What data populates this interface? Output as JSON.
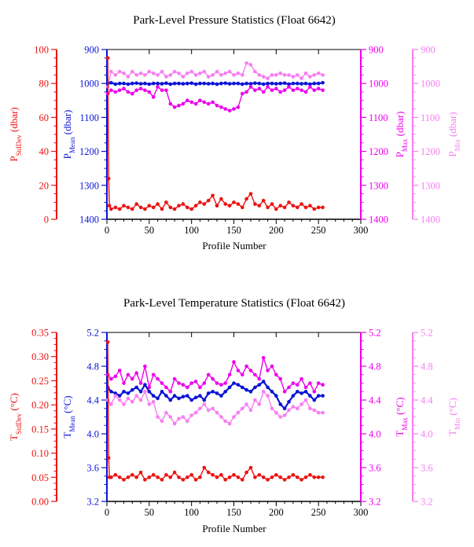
{
  "colors": {
    "stddev": "#ee1111",
    "mean": "#0a14d6",
    "max": "#ee00ee",
    "min": "#f77ef2",
    "frame": "#000000"
  },
  "chart_data": [
    {
      "type": "line",
      "title": "Park-Level Pressure Statistics (Float 6642)",
      "xlabel": "Profile Number",
      "xlim": [
        0,
        300
      ],
      "x_ticks": [
        "0",
        "50",
        "100",
        "150",
        "200",
        "250",
        "300"
      ],
      "axes": {
        "stddev": {
          "label_main": "P",
          "label_sub": "StdDev",
          "label_unit": " (dbar)",
          "lim": [
            0,
            100
          ],
          "ticks": [
            "0",
            "20",
            "40",
            "60",
            "80",
            "100"
          ]
        },
        "mean": {
          "label_main": "P",
          "label_sub": "Mean",
          "label_unit": " (dbar)",
          "lim": [
            1400,
            900
          ],
          "ticks": [
            "900",
            "1000",
            "1100",
            "1200",
            "1300",
            "1400"
          ]
        },
        "max": {
          "label_main": "P",
          "label_sub": "Max",
          "label_unit": " (dbar)",
          "lim": [
            1400,
            900
          ],
          "ticks": [
            "900",
            "1000",
            "1100",
            "1200",
            "1300",
            "1400"
          ]
        },
        "min": {
          "label_main": "P",
          "label_sub": "Min",
          "label_unit": " (dbar)",
          "lim": [
            1400,
            900
          ],
          "ticks": [
            "900",
            "1000",
            "1100",
            "1200",
            "1300",
            "1400"
          ]
        }
      },
      "series": [
        {
          "key": "min",
          "x": [
            1,
            5,
            10,
            15,
            20,
            25,
            30,
            35,
            40,
            45,
            50,
            55,
            60,
            65,
            70,
            75,
            80,
            85,
            90,
            95,
            100,
            105,
            110,
            115,
            120,
            125,
            130,
            135,
            140,
            145,
            150,
            155,
            160,
            165,
            170,
            175,
            180,
            185,
            190,
            195,
            200,
            205,
            210,
            215,
            220,
            225,
            230,
            235,
            240,
            245,
            250,
            255
          ],
          "values": [
            1010,
            965,
            975,
            965,
            970,
            980,
            965,
            975,
            970,
            975,
            965,
            970,
            975,
            965,
            980,
            975,
            965,
            970,
            980,
            970,
            965,
            975,
            970,
            965,
            980,
            975,
            965,
            975,
            970,
            965,
            975,
            970,
            975,
            940,
            945,
            965,
            975,
            980,
            985,
            975,
            975,
            970,
            975,
            975,
            980,
            975,
            985,
            970,
            980,
            975,
            970,
            975
          ]
        },
        {
          "key": "mean",
          "x": [
            1,
            5,
            10,
            15,
            20,
            25,
            30,
            35,
            40,
            45,
            50,
            55,
            60,
            65,
            70,
            75,
            80,
            85,
            90,
            95,
            100,
            105,
            110,
            115,
            120,
            125,
            130,
            135,
            140,
            145,
            150,
            155,
            160,
            165,
            170,
            175,
            180,
            185,
            190,
            195,
            200,
            205,
            210,
            215,
            220,
            225,
            230,
            235,
            240,
            245,
            250,
            255
          ],
          "values": [
            1000,
            998,
            1002,
            1000,
            1000,
            1002,
            1000,
            999,
            1001,
            1000,
            1002,
            1000,
            1000,
            1001,
            999,
            1002,
            1000,
            1000,
            1001,
            1000,
            999,
            1002,
            1000,
            1000,
            1001,
            1000,
            1002,
            1000,
            999,
            1001,
            1000,
            1000,
            1002,
            1000,
            1001,
            999,
            1000,
            1002,
            1000,
            1000,
            1001,
            1000,
            999,
            1002,
            1000,
            1000,
            1001,
            1000,
            1002,
            1000,
            1000,
            998
          ]
        },
        {
          "key": "max",
          "x": [
            1,
            5,
            10,
            15,
            20,
            25,
            30,
            35,
            40,
            45,
            50,
            55,
            60,
            65,
            70,
            75,
            80,
            85,
            90,
            95,
            100,
            105,
            110,
            115,
            120,
            125,
            130,
            135,
            140,
            145,
            150,
            155,
            160,
            165,
            170,
            175,
            180,
            185,
            190,
            195,
            200,
            205,
            210,
            215,
            220,
            225,
            230,
            235,
            240,
            245,
            250,
            255
          ],
          "values": [
            1030,
            1020,
            1025,
            1020,
            1015,
            1025,
            1030,
            1020,
            1015,
            1020,
            1025,
            1040,
            1010,
            1020,
            1020,
            1060,
            1070,
            1065,
            1060,
            1050,
            1055,
            1060,
            1050,
            1055,
            1060,
            1055,
            1065,
            1070,
            1075,
            1080,
            1075,
            1070,
            1030,
            1025,
            1010,
            1020,
            1015,
            1025,
            1010,
            1020,
            1015,
            1025,
            1020,
            1010,
            1020,
            1015,
            1020,
            1025,
            1010,
            1020,
            1015,
            1020
          ]
        },
        {
          "key": "stddev",
          "x": [
            1,
            2,
            3,
            5,
            10,
            15,
            20,
            25,
            30,
            35,
            40,
            45,
            50,
            55,
            60,
            65,
            70,
            75,
            80,
            85,
            90,
            95,
            100,
            105,
            110,
            115,
            120,
            125,
            130,
            135,
            140,
            145,
            150,
            155,
            160,
            165,
            170,
            175,
            180,
            185,
            190,
            195,
            200,
            205,
            210,
            215,
            220,
            225,
            230,
            235,
            240,
            245,
            250,
            255
          ],
          "values": [
            95,
            24,
            8,
            6,
            7,
            6,
            8,
            7,
            6,
            9,
            7,
            6,
            8,
            7,
            9,
            6,
            10,
            7,
            6,
            8,
            9,
            7,
            6,
            8,
            10,
            9,
            11,
            14,
            8,
            12,
            9,
            8,
            10,
            9,
            7,
            12,
            15,
            9,
            8,
            11,
            7,
            9,
            6,
            8,
            7,
            10,
            8,
            7,
            9,
            7,
            8,
            6,
            7,
            7
          ]
        }
      ]
    },
    {
      "type": "line",
      "title": "Park-Level Temperature Statistics (Float 6642)",
      "xlabel": "Profile Number",
      "xlim": [
        0,
        300
      ],
      "x_ticks": [
        "0",
        "50",
        "100",
        "150",
        "200",
        "250",
        "300"
      ],
      "axes": {
        "stddev": {
          "label_main": "T",
          "label_sub": "StdDev",
          "label_unit": " (°C)",
          "lim": [
            0,
            0.35
          ],
          "ticks": [
            "0.00",
            "0.05",
            "0.10",
            "0.15",
            "0.20",
            "0.25",
            "0.30",
            "0.35"
          ]
        },
        "mean": {
          "label_main": "T",
          "label_sub": "Mean",
          "label_unit": " (°C)",
          "lim": [
            3.2,
            5.2
          ],
          "ticks": [
            "3.2",
            "3.6",
            "4.0",
            "4.4",
            "4.8",
            "5.2"
          ]
        },
        "max": {
          "label_main": "T",
          "label_sub": "Max",
          "label_unit": " (°C)",
          "lim": [
            3.2,
            5.2
          ],
          "ticks": [
            "3.2",
            "3.6",
            "4.0",
            "4.4",
            "4.8",
            "5.2"
          ]
        },
        "min": {
          "label_main": "T",
          "label_sub": "Min",
          "label_unit": " (°C)",
          "lim": [
            3.2,
            5.2
          ],
          "ticks": [
            "3.2",
            "3.6",
            "4.0",
            "4.4",
            "4.8",
            "5.2"
          ]
        }
      },
      "series": [
        {
          "key": "max",
          "x": [
            1,
            5,
            10,
            15,
            20,
            25,
            30,
            35,
            40,
            45,
            50,
            55,
            60,
            65,
            70,
            75,
            80,
            85,
            90,
            95,
            100,
            105,
            110,
            115,
            120,
            125,
            130,
            135,
            140,
            145,
            150,
            155,
            160,
            165,
            170,
            175,
            180,
            185,
            190,
            195,
            200,
            205,
            210,
            215,
            220,
            225,
            230,
            235,
            240,
            245,
            250,
            255
          ],
          "values": [
            4.7,
            4.65,
            4.68,
            4.75,
            4.6,
            4.7,
            4.65,
            4.72,
            4.6,
            4.8,
            4.55,
            4.7,
            4.65,
            4.6,
            4.55,
            4.5,
            4.65,
            4.6,
            4.58,
            4.55,
            4.6,
            4.62,
            4.55,
            4.6,
            4.7,
            4.65,
            4.6,
            4.58,
            4.6,
            4.7,
            4.85,
            4.75,
            4.7,
            4.8,
            4.75,
            4.7,
            4.65,
            4.9,
            4.75,
            4.8,
            4.7,
            4.65,
            4.5,
            4.55,
            4.6,
            4.58,
            4.65,
            4.55,
            4.6,
            4.5,
            4.6,
            4.58
          ]
        },
        {
          "key": "mean",
          "x": [
            1,
            5,
            10,
            15,
            20,
            25,
            30,
            35,
            40,
            45,
            50,
            55,
            60,
            65,
            70,
            75,
            80,
            85,
            90,
            95,
            100,
            105,
            110,
            115,
            120,
            125,
            130,
            135,
            140,
            145,
            150,
            155,
            160,
            165,
            170,
            175,
            180,
            185,
            190,
            195,
            200,
            205,
            210,
            215,
            220,
            225,
            230,
            235,
            240,
            245,
            250,
            255
          ],
          "values": [
            4.55,
            4.5,
            4.48,
            4.45,
            4.5,
            4.48,
            4.52,
            4.55,
            4.5,
            4.58,
            4.5,
            4.45,
            4.42,
            4.5,
            4.45,
            4.4,
            4.45,
            4.42,
            4.44,
            4.45,
            4.4,
            4.43,
            4.45,
            4.4,
            4.48,
            4.5,
            4.48,
            4.45,
            4.5,
            4.55,
            4.6,
            4.58,
            4.55,
            4.52,
            4.5,
            4.55,
            4.58,
            4.62,
            4.55,
            4.5,
            4.45,
            4.35,
            4.3,
            4.38,
            4.45,
            4.5,
            4.48,
            4.5,
            4.45,
            4.4,
            4.45,
            4.45
          ]
        },
        {
          "key": "min",
          "x": [
            1,
            5,
            10,
            15,
            20,
            25,
            30,
            35,
            40,
            45,
            50,
            55,
            60,
            65,
            70,
            75,
            80,
            85,
            90,
            95,
            100,
            105,
            110,
            115,
            120,
            125,
            130,
            135,
            140,
            145,
            150,
            155,
            160,
            165,
            170,
            175,
            180,
            185,
            190,
            195,
            200,
            205,
            210,
            215,
            220,
            225,
            230,
            235,
            240,
            245,
            250,
            255
          ],
          "values": [
            4.4,
            4.35,
            4.45,
            4.4,
            4.35,
            4.42,
            4.38,
            4.45,
            4.4,
            4.5,
            4.35,
            4.38,
            4.2,
            4.15,
            4.25,
            4.2,
            4.12,
            4.18,
            4.2,
            4.15,
            4.22,
            4.25,
            4.3,
            4.35,
            4.28,
            4.3,
            4.25,
            4.2,
            4.15,
            4.12,
            4.2,
            4.25,
            4.3,
            4.35,
            4.28,
            4.4,
            4.35,
            4.5,
            4.45,
            4.3,
            4.25,
            4.2,
            4.22,
            4.28,
            4.32,
            4.3,
            4.35,
            4.4,
            4.3,
            4.28,
            4.25,
            4.25
          ]
        },
        {
          "key": "stddev",
          "x": [
            1,
            2,
            3,
            5,
            10,
            15,
            20,
            25,
            30,
            35,
            40,
            45,
            50,
            55,
            60,
            65,
            70,
            75,
            80,
            85,
            90,
            95,
            100,
            105,
            110,
            115,
            120,
            125,
            130,
            135,
            140,
            145,
            150,
            155,
            160,
            165,
            170,
            175,
            180,
            185,
            190,
            195,
            200,
            205,
            210,
            215,
            220,
            225,
            230,
            235,
            240,
            245,
            250,
            255
          ],
          "values": [
            0.33,
            0.09,
            0.05,
            0.05,
            0.055,
            0.05,
            0.045,
            0.05,
            0.055,
            0.05,
            0.06,
            0.045,
            0.05,
            0.055,
            0.05,
            0.045,
            0.055,
            0.05,
            0.06,
            0.05,
            0.045,
            0.05,
            0.055,
            0.045,
            0.05,
            0.07,
            0.06,
            0.055,
            0.05,
            0.055,
            0.045,
            0.05,
            0.055,
            0.05,
            0.045,
            0.06,
            0.07,
            0.05,
            0.055,
            0.05,
            0.045,
            0.05,
            0.055,
            0.05,
            0.045,
            0.05,
            0.055,
            0.05,
            0.045,
            0.05,
            0.055,
            0.05,
            0.05,
            0.05
          ]
        }
      ]
    }
  ]
}
